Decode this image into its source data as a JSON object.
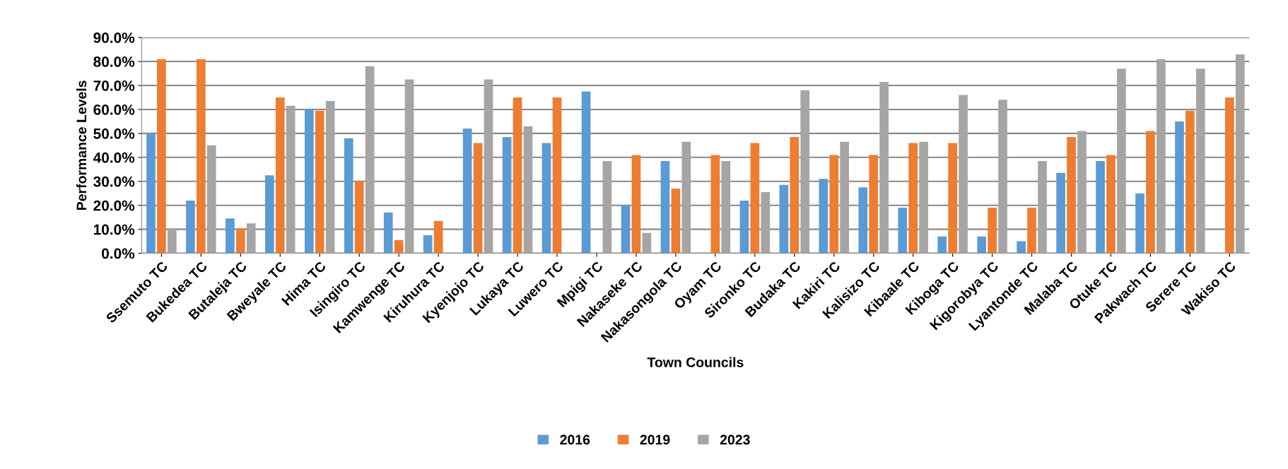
{
  "chart_data": {
    "type": "bar",
    "xlabel": "Town Councils",
    "ylabel": "Performance Levels",
    "categories": [
      "Ssemuto TC",
      "Bukedea TC",
      "Butaleja TC",
      "Bweyale TC",
      "Hima TC",
      "Isingiro TC",
      "Kamwenge TC",
      "Kiruhura TC",
      "Kyenjojo TC",
      "Lukaya TC",
      "Luwero TC",
      "Mpigi TC",
      "Nakaseke TC",
      "Nakasongola TC",
      "Oyam TC",
      "Sironko TC",
      "Budaka TC",
      "Kakiri TC",
      "Kalisizo TC",
      "Kibaale TC",
      "Kiboga TC",
      "Kigorobya TC",
      "Lyantonde TC",
      "Malaba TC",
      "Otuke TC",
      "Pakwach TC",
      "Serere TC",
      "Wakiso TC"
    ],
    "series": [
      {
        "name": "2016",
        "color": "#5b9bd5",
        "values": [
          50,
          22,
          14.5,
          32.5,
          60,
          48,
          17,
          7.5,
          52,
          48.5,
          46,
          67.5,
          20,
          38.5,
          0,
          22,
          28.5,
          31,
          27.5,
          19,
          7,
          7,
          5,
          33.5,
          38.5,
          25,
          55,
          0
        ]
      },
      {
        "name": "2019",
        "color": "#ed7d31",
        "values": [
          81,
          81,
          10.5,
          65,
          59.5,
          30,
          5.5,
          13.5,
          46,
          65,
          65,
          0,
          41,
          27,
          41,
          46,
          48.5,
          41,
          41,
          46,
          46,
          19,
          19,
          48.5,
          41,
          51,
          59.5,
          65
        ]
      },
      {
        "name": "2023",
        "color": "#a5a5a5",
        "values": [
          10.5,
          45,
          12.5,
          61.5,
          63.5,
          78,
          72.5,
          0,
          72.5,
          53,
          0,
          38.5,
          8.5,
          46.5,
          38.5,
          25.5,
          68,
          46.5,
          71.5,
          46.5,
          66,
          64,
          38.5,
          51,
          77,
          81,
          77,
          83
        ]
      }
    ],
    "ylim": [
      0,
      90
    ],
    "yticks": [
      {
        "value": 0,
        "label": "0.0%"
      },
      {
        "value": 10,
        "label": "10.0%"
      },
      {
        "value": 20,
        "label": "20.0%"
      },
      {
        "value": 30,
        "label": "30.0%"
      },
      {
        "value": 40,
        "label": "40.0%"
      },
      {
        "value": 50,
        "label": "50.0%"
      },
      {
        "value": 60,
        "label": "60.0%"
      },
      {
        "value": 70,
        "label": "70.0%"
      },
      {
        "value": 80,
        "label": "80.0%"
      },
      {
        "value": 90,
        "label": "90.0%"
      }
    ],
    "grid": "y",
    "legend": "bottom"
  }
}
